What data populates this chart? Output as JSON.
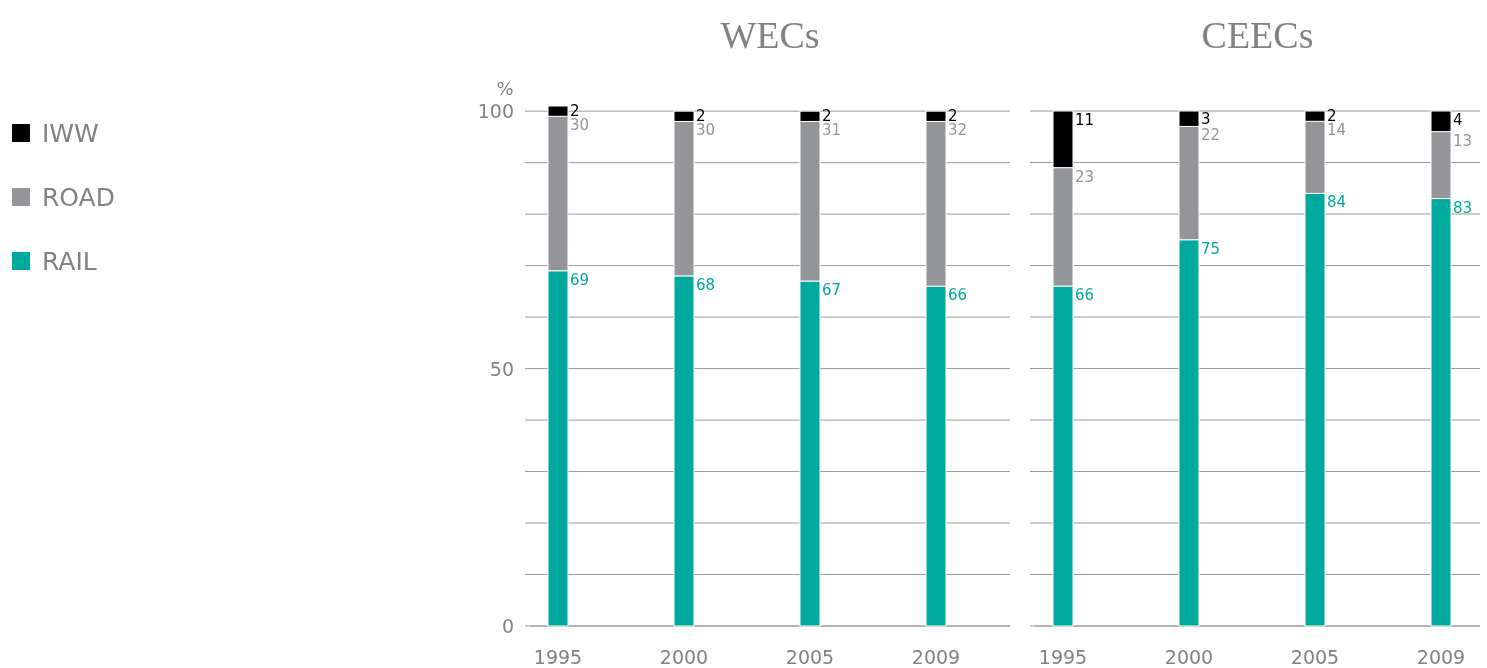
{
  "chart_data": [
    {
      "type": "bar",
      "title": "WECs",
      "ylabel": "%",
      "stacked": true,
      "categories": [
        "1995",
        "2000",
        "2005",
        "2009"
      ],
      "series": [
        {
          "name": "RAIL",
          "color": "#00a99d",
          "values": [
            69,
            68,
            67,
            66
          ]
        },
        {
          "name": "ROAD",
          "color": "#939598",
          "values": [
            30,
            30,
            31,
            32
          ]
        },
        {
          "name": "IWW",
          "color": "#000000",
          "values": [
            2,
            2,
            2,
            2
          ]
        }
      ],
      "ylim": [
        0,
        101
      ],
      "yticks": [
        0,
        {
          "value": 10,
          "label": null
        },
        {
          "value": 20,
          "label": null
        },
        {
          "value": 30,
          "label": null
        },
        {
          "value": 40,
          "label": null
        },
        50,
        {
          "value": 60,
          "label": null
        },
        {
          "value": 70,
          "label": null
        },
        {
          "value": 80,
          "label": null
        },
        {
          "value": 90,
          "label": null
        },
        100
      ],
      "grid": "y",
      "legend": "left",
      "data_labels": true
    },
    {
      "type": "bar",
      "title": "CEECs",
      "stacked": true,
      "categories": [
        "1995",
        "2000",
        "2005",
        "2009"
      ],
      "series": [
        {
          "color": "#00a99d",
          "values": [
            66,
            75,
            84,
            83
          ]
        },
        {
          "color": "#939598",
          "values": [
            23,
            22,
            14,
            13
          ]
        },
        {
          "color": "#000000",
          "values": [
            11,
            3,
            2,
            4
          ]
        }
      ],
      "ylim": [
        0,
        100
      ],
      "yticks": [
        0,
        {
          "value": 10,
          "label": null
        },
        {
          "value": 20,
          "label": null
        },
        {
          "value": 30,
          "label": null
        },
        {
          "value": 40,
          "label": null
        },
        {
          "value": 50,
          "label": null
        },
        {
          "value": 60,
          "label": null
        },
        {
          "value": 70,
          "label": null
        },
        {
          "value": 80,
          "label": null
        },
        {
          "value": 90,
          "label": null
        },
        100
      ],
      "grid": "y",
      "tick_labels": "x",
      "data_labels": true
    }
  ]
}
